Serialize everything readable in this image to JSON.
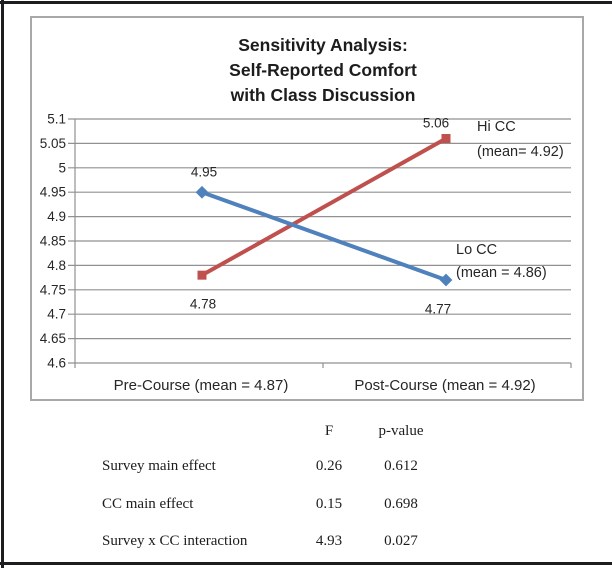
{
  "chart": {
    "title_lines": [
      "Sensitivity Analysis:",
      "Self-Reported Comfort",
      "with Class Discussion"
    ]
  },
  "chart_data": {
    "type": "line",
    "title": "Sensitivity Analysis: Self-Reported Comfort with Class Discussion",
    "categories": [
      "Pre-Course (mean = 4.87)",
      "Post-Course (mean = 4.92)"
    ],
    "series": [
      {
        "name": "Hi CC",
        "values": [
          4.78,
          5.06
        ],
        "point_labels": [
          "4.78",
          "5.06"
        ],
        "legend": [
          "Hi CC",
          "(mean= 4.92)"
        ],
        "color": "#C0504D",
        "marker": "square"
      },
      {
        "name": "Lo CC",
        "values": [
          4.95,
          4.77
        ],
        "point_labels": [
          "4.95",
          "4.77"
        ],
        "legend": [
          "Lo CC",
          "(mean = 4.86)"
        ],
        "color": "#4F81BD",
        "marker": "diamond"
      }
    ],
    "ylim": [
      4.6,
      5.1
    ],
    "ytick_step": 0.05,
    "yticks": [
      "5.1",
      "5.05",
      "5",
      "4.95",
      "4.9",
      "4.85",
      "4.8",
      "4.75",
      "4.7",
      "4.65",
      "4.6"
    ],
    "grid": true,
    "legend_position": "right-of-line-ends",
    "colors": {
      "grid": "#919191",
      "text": "#262626",
      "chart_border": "#a8a8a8",
      "page_frame": "#1d1d1f"
    }
  },
  "table": {
    "headers": {
      "f": "F",
      "p": "p-value"
    },
    "rows": [
      {
        "label": "Survey main effect",
        "f": "0.26",
        "p": "0.612"
      },
      {
        "label": "CC main effect",
        "f": "0.15",
        "p": "0.698"
      },
      {
        "label": "Survey x CC interaction",
        "f": "4.93",
        "p": "0.027"
      }
    ]
  }
}
